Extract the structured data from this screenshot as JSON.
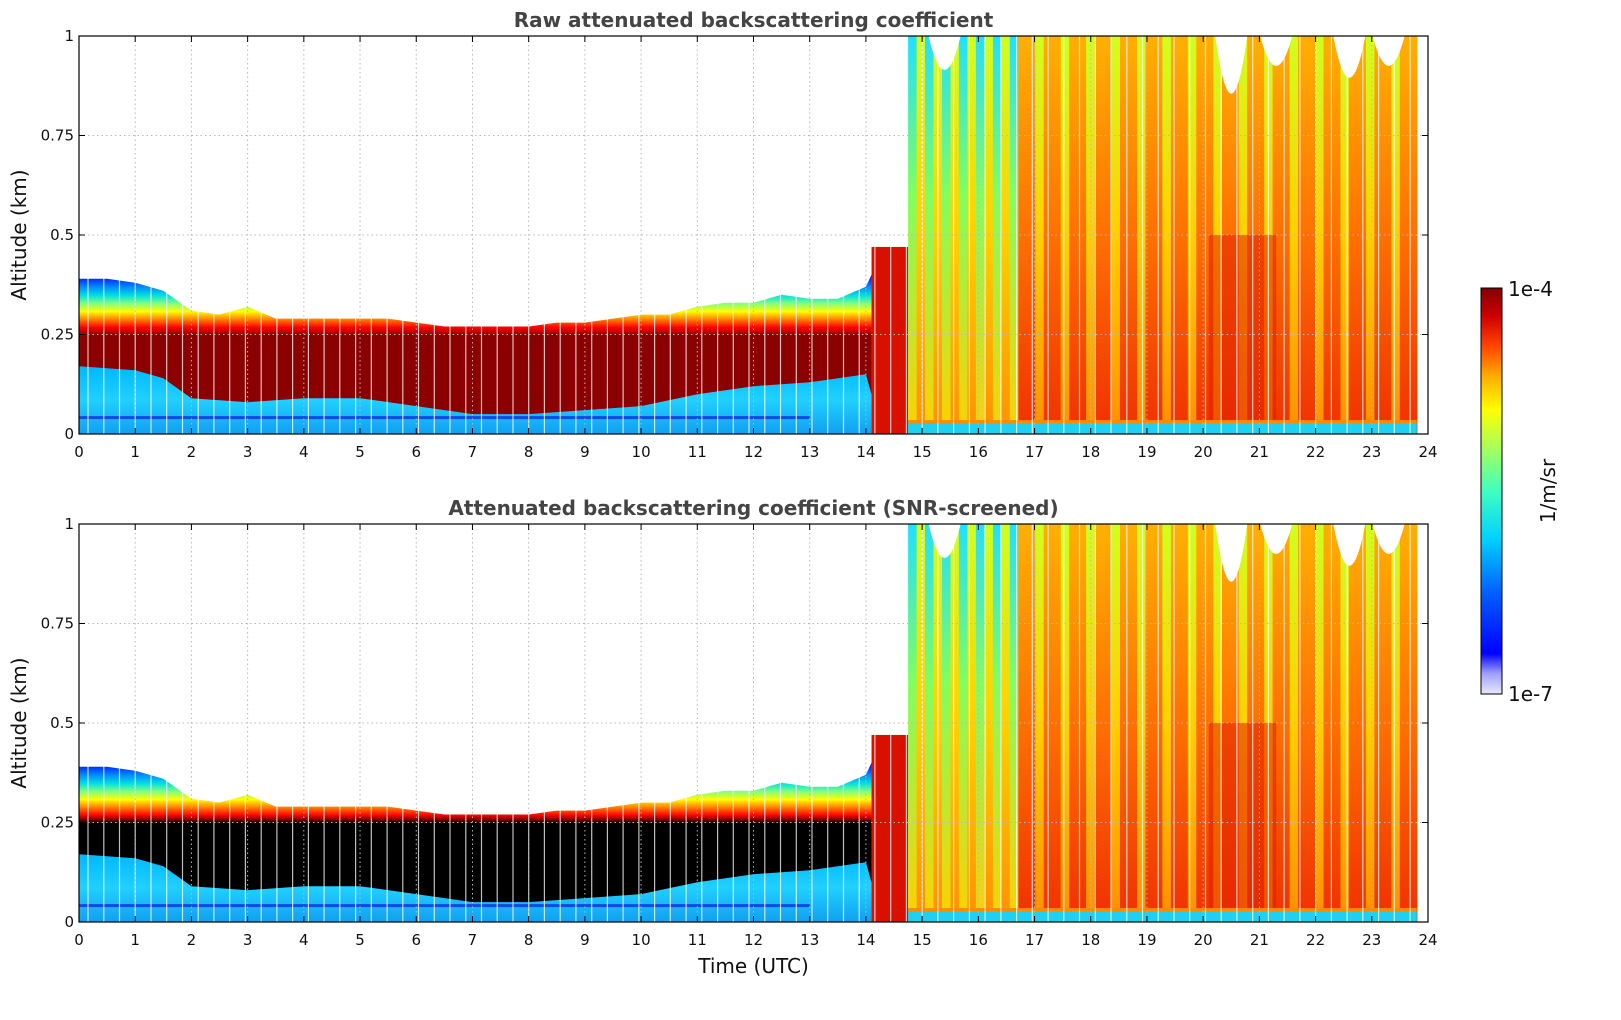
{
  "chart_data": [
    {
      "type": "heatmap",
      "title": "Raw attenuated backscattering coefficient",
      "xlabel": "",
      "ylabel": "Altitude (km)",
      "xlim": [
        0,
        24
      ],
      "ylim": [
        0,
        1
      ],
      "x_ticks": [
        "0",
        "1",
        "2",
        "3",
        "4",
        "5",
        "6",
        "7",
        "8",
        "9",
        "10",
        "11",
        "12",
        "13",
        "14",
        "15",
        "16",
        "17",
        "18",
        "19",
        "20",
        "21",
        "22",
        "23",
        "24"
      ],
      "y_ticks": [
        "0",
        "0.25",
        "0.5",
        "0.75",
        "1"
      ],
      "grid": true,
      "screened": false,
      "layer_top_km": [
        [
          0,
          0.39
        ],
        [
          0.5,
          0.39
        ],
        [
          1,
          0.38
        ],
        [
          1.5,
          0.36
        ],
        [
          2,
          0.31
        ],
        [
          2.5,
          0.3
        ],
        [
          3,
          0.32
        ],
        [
          3.5,
          0.29
        ],
        [
          4,
          0.29
        ],
        [
          4.5,
          0.29
        ],
        [
          5,
          0.29
        ],
        [
          5.5,
          0.29
        ],
        [
          6,
          0.28
        ],
        [
          6.5,
          0.27
        ],
        [
          7,
          0.27
        ],
        [
          7.5,
          0.27
        ],
        [
          8,
          0.27
        ],
        [
          8.5,
          0.28
        ],
        [
          9,
          0.28
        ],
        [
          9.5,
          0.29
        ],
        [
          10,
          0.3
        ],
        [
          10.5,
          0.3
        ],
        [
          11,
          0.32
        ],
        [
          11.5,
          0.33
        ],
        [
          12,
          0.33
        ],
        [
          12.5,
          0.35
        ],
        [
          13,
          0.34
        ],
        [
          13.5,
          0.34
        ],
        [
          14,
          0.37
        ]
      ],
      "high_backscatter_start_utc": 14.1,
      "full_column_start_utc": 14.75,
      "data_end_utc": 23.8
    },
    {
      "type": "heatmap",
      "title": "Attenuated backscattering coefficient (SNR-screened)",
      "xlabel": "Time (UTC)",
      "ylabel": "Altitude (km)",
      "xlim": [
        0,
        24
      ],
      "ylim": [
        0,
        1
      ],
      "x_ticks": [
        "0",
        "1",
        "2",
        "3",
        "4",
        "5",
        "6",
        "7",
        "8",
        "9",
        "10",
        "11",
        "12",
        "13",
        "14",
        "15",
        "16",
        "17",
        "18",
        "19",
        "20",
        "21",
        "22",
        "23",
        "24"
      ],
      "y_ticks": [
        "0",
        "0.25",
        "0.5",
        "0.75",
        "1"
      ],
      "grid": true,
      "screened": true,
      "layer_top_km": [
        [
          0,
          0.39
        ],
        [
          0.5,
          0.39
        ],
        [
          1,
          0.38
        ],
        [
          1.5,
          0.36
        ],
        [
          2,
          0.31
        ],
        [
          2.5,
          0.3
        ],
        [
          3,
          0.32
        ],
        [
          3.5,
          0.29
        ],
        [
          4,
          0.29
        ],
        [
          4.5,
          0.29
        ],
        [
          5,
          0.29
        ],
        [
          5.5,
          0.29
        ],
        [
          6,
          0.28
        ],
        [
          6.5,
          0.27
        ],
        [
          7,
          0.27
        ],
        [
          7.5,
          0.27
        ],
        [
          8,
          0.27
        ],
        [
          8.5,
          0.28
        ],
        [
          9,
          0.28
        ],
        [
          9.5,
          0.29
        ],
        [
          10,
          0.3
        ],
        [
          10.5,
          0.3
        ],
        [
          11,
          0.32
        ],
        [
          11.5,
          0.33
        ],
        [
          12,
          0.33
        ],
        [
          12.5,
          0.35
        ],
        [
          13,
          0.34
        ],
        [
          13.5,
          0.34
        ],
        [
          14,
          0.37
        ]
      ],
      "high_backscatter_start_utc": 14.1,
      "full_column_start_utc": 14.75,
      "data_end_utc": 23.8
    }
  ],
  "colorbar": {
    "label": "1/m/sr",
    "max_label": "1e-4",
    "min_label": "1e-7",
    "scale": "log",
    "range": [
      1e-07,
      0.0001
    ]
  }
}
